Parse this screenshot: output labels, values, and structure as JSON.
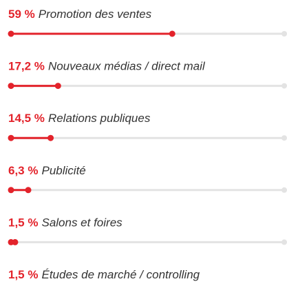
{
  "chart_data": {
    "type": "bar",
    "orientation": "horizontal",
    "categories": [
      "Promotion des ventes",
      "Nouveaux médias / direct mail",
      "Relations publiques",
      "Publicité",
      "Salons et foires",
      "Études de marché / controlling"
    ],
    "values": [
      59,
      17.2,
      14.5,
      6.3,
      1.5,
      1.5
    ],
    "value_labels": [
      "59 %",
      "17,2 %",
      "14,5 %",
      "6,3 %",
      "1,5 %",
      "1,5 %"
    ],
    "color": "#e3232b",
    "xlim": [
      0,
      100
    ]
  }
}
